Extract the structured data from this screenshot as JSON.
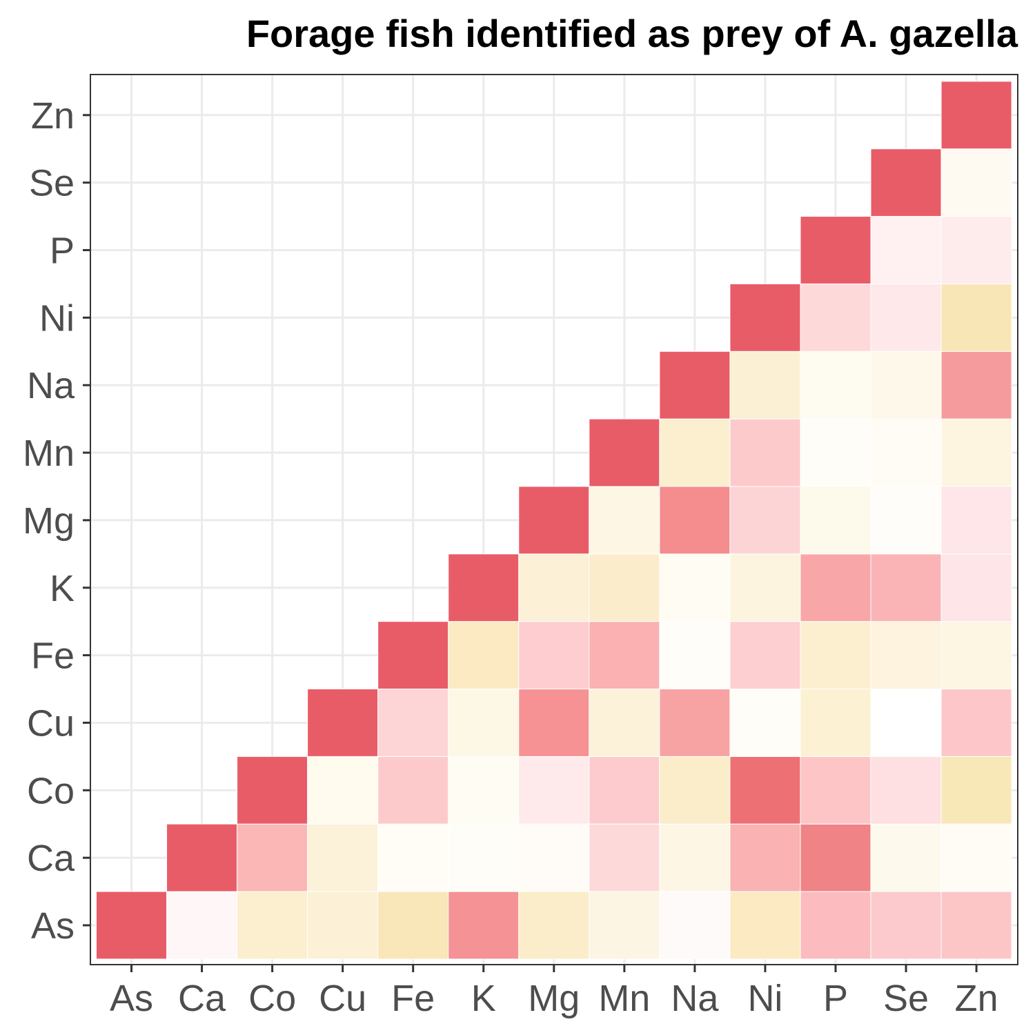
{
  "chart_data": {
    "type": "heatmap",
    "title": "Forage fish identified as prey of A. gazella",
    "xlabel": "",
    "ylabel": "",
    "x_categories": [
      "As",
      "Ca",
      "Co",
      "Cu",
      "Fe",
      "K",
      "Mg",
      "Mn",
      "Na",
      "Ni",
      "P",
      "Se",
      "Zn"
    ],
    "y_categories": [
      "As",
      "Ca",
      "Co",
      "Cu",
      "Fe",
      "K",
      "Mg",
      "Mn",
      "Na",
      "Ni",
      "P",
      "Se",
      "Zn"
    ],
    "grid": true,
    "legend": "none",
    "colors": {
      "high": "#e85c68",
      "mid": "#fffdf8",
      "low": "#f7e3b0"
    },
    "cells": [
      [
        "As",
        "As",
        "#e85c68"
      ],
      [
        "Ca",
        "As",
        "#fff7f7"
      ],
      [
        "Co",
        "As",
        "#fcefcf"
      ],
      [
        "Cu",
        "As",
        "#fcf1d6"
      ],
      [
        "Fe",
        "As",
        "#f9e6b9"
      ],
      [
        "K",
        "As",
        "#f49295"
      ],
      [
        "Mg",
        "As",
        "#fbedc9"
      ],
      [
        "Mn",
        "As",
        "#fdf5e3"
      ],
      [
        "Na",
        "As",
        "#fffafa"
      ],
      [
        "Ni",
        "As",
        "#fbeac2"
      ],
      [
        "P",
        "As",
        "#fcbcbf"
      ],
      [
        "Se",
        "As",
        "#fccacc"
      ],
      [
        "Zn",
        "As",
        "#fcc6c7"
      ],
      [
        "Ca",
        "Ca",
        "#e85c68"
      ],
      [
        "Co",
        "Ca",
        "#fbb6b6"
      ],
      [
        "Cu",
        "Ca",
        "#fcf2d9"
      ],
      [
        "Fe",
        "Ca",
        "#fffdf6"
      ],
      [
        "K",
        "Ca",
        "#fffdf7"
      ],
      [
        "Mg",
        "Ca",
        "#fffbf7"
      ],
      [
        "Mn",
        "Ca",
        "#fdd9da"
      ],
      [
        "Na",
        "Ca",
        "#fdf6e4"
      ],
      [
        "Ni",
        "Ca",
        "#fab2b3"
      ],
      [
        "P",
        "Ca",
        "#f08385"
      ],
      [
        "Se",
        "Ca",
        "#fdf9ec"
      ],
      [
        "Zn",
        "Ca",
        "#fffbf5"
      ],
      [
        "Co",
        "Co",
        "#e85c68"
      ],
      [
        "Cu",
        "Co",
        "#fffbef"
      ],
      [
        "Fe",
        "Co",
        "#fdcacc"
      ],
      [
        "K",
        "Co",
        "#fffcf3"
      ],
      [
        "Mg",
        "Co",
        "#feeaea"
      ],
      [
        "Mn",
        "Co",
        "#fdcbcd"
      ],
      [
        "Na",
        "Co",
        "#fbedca"
      ],
      [
        "Ni",
        "Co",
        "#ed7074"
      ],
      [
        "P",
        "Co",
        "#fdc5c6"
      ],
      [
        "Se",
        "Co",
        "#fee0e2"
      ],
      [
        "Zn",
        "Co",
        "#f8e8b8"
      ],
      [
        "Cu",
        "Cu",
        "#e85c68"
      ],
      [
        "Fe",
        "Cu",
        "#fdd5d6"
      ],
      [
        "K",
        "Cu",
        "#fdf7e5"
      ],
      [
        "Mg",
        "Cu",
        "#f69294"
      ],
      [
        "Mn",
        "Cu",
        "#fcf1d9"
      ],
      [
        "Na",
        "Cu",
        "#f8a3a3"
      ],
      [
        "Ni",
        "Cu",
        "#fffdf8"
      ],
      [
        "P",
        "Cu",
        "#fcf1d2"
      ],
      [
        "Se",
        "Cu",
        "#ffffff"
      ],
      [
        "Zn",
        "Cu",
        "#fdc6c8"
      ],
      [
        "Fe",
        "Fe",
        "#e85c68"
      ],
      [
        "K",
        "Fe",
        "#fbeac2"
      ],
      [
        "Mg",
        "Fe",
        "#fdcdcf"
      ],
      [
        "Mn",
        "Fe",
        "#fbb0b1"
      ],
      [
        "Na",
        "Fe",
        "#fffdf9"
      ],
      [
        "Ni",
        "Fe",
        "#fdcfd1"
      ],
      [
        "P",
        "Fe",
        "#fcefd0"
      ],
      [
        "Se",
        "Fe",
        "#fdf3de"
      ],
      [
        "Zn",
        "Fe",
        "#fdf6e3"
      ],
      [
        "K",
        "K",
        "#e85c68"
      ],
      [
        "Mg",
        "K",
        "#fcf1d6"
      ],
      [
        "Mn",
        "K",
        "#fbedcb"
      ],
      [
        "Na",
        "K",
        "#fffcf3"
      ],
      [
        "Ni",
        "K",
        "#fdf4df"
      ],
      [
        "P",
        "K",
        "#f9a6a8"
      ],
      [
        "Se",
        "K",
        "#fbb4b5"
      ],
      [
        "Zn",
        "K",
        "#fee5e7"
      ],
      [
        "Mg",
        "Mg",
        "#e85c68"
      ],
      [
        "Mn",
        "Mg",
        "#fdf6e4"
      ],
      [
        "Na",
        "Mg",
        "#f58c8e"
      ],
      [
        "Ni",
        "Mg",
        "#fdd4d5"
      ],
      [
        "P",
        "Mg",
        "#fdf9eb"
      ],
      [
        "Se",
        "Mg",
        "#fffdf9"
      ],
      [
        "Zn",
        "Mg",
        "#fee6e9"
      ],
      [
        "Mn",
        "Mn",
        "#e85c68"
      ],
      [
        "Na",
        "Mn",
        "#fbefcf"
      ],
      [
        "Ni",
        "Mn",
        "#fdcacc"
      ],
      [
        "P",
        "Mn",
        "#fffdf7"
      ],
      [
        "Se",
        "Mn",
        "#fffcf6"
      ],
      [
        "Zn",
        "Mn",
        "#fdf5e0"
      ],
      [
        "Na",
        "Na",
        "#e85c68"
      ],
      [
        "Ni",
        "Na",
        "#fcf0d4"
      ],
      [
        "P",
        "Na",
        "#fefbf0"
      ],
      [
        "Se",
        "Na",
        "#fdf8e9"
      ],
      [
        "Zn",
        "Na",
        "#f69b9d"
      ],
      [
        "Ni",
        "Ni",
        "#e85c68"
      ],
      [
        "P",
        "Ni",
        "#fdd9da"
      ],
      [
        "Se",
        "Ni",
        "#fee8ea"
      ],
      [
        "Zn",
        "Ni",
        "#f9e6b6"
      ],
      [
        "P",
        "P",
        "#e85c68"
      ],
      [
        "Se",
        "P",
        "#fff1f1"
      ],
      [
        "Zn",
        "P",
        "#feeced"
      ],
      [
        "Se",
        "Se",
        "#e85c68"
      ],
      [
        "Zn",
        "Se",
        "#fefaf1"
      ],
      [
        "Zn",
        "Zn",
        "#e85c68"
      ]
    ]
  }
}
